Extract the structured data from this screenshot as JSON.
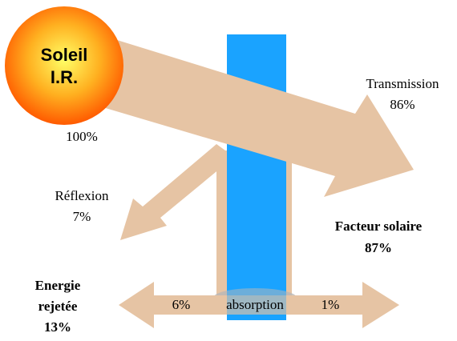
{
  "sun": {
    "line1": "Soleil",
    "line2": "I.R.",
    "percent": "100%"
  },
  "transmission": {
    "label": "Transmission",
    "percent": "86%"
  },
  "reflection": {
    "label": "Réflexion",
    "percent": "7%"
  },
  "solar_factor": {
    "label": "Facteur solaire",
    "percent": "87%"
  },
  "rejected": {
    "line1": "Energie",
    "line2": "rejetée",
    "percent": "13%"
  },
  "absorption": {
    "label": "absorption",
    "outside": "6%",
    "inside": "1%"
  }
}
